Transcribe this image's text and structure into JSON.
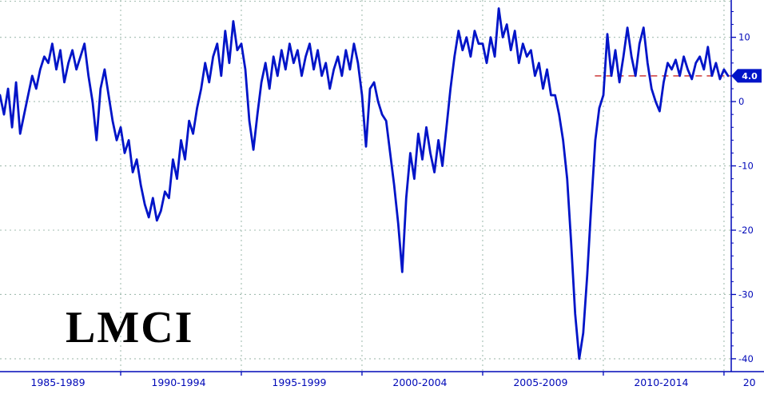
{
  "chart_data": {
    "type": "line",
    "title": "LMCI",
    "x_axis": {
      "xlim": [
        1985,
        2015.3
      ],
      "gridline_years": [
        1990,
        1995,
        2000,
        2005,
        2010,
        2015
      ],
      "tick_labels": [
        {
          "label": "1985-1989",
          "center_year": 1987.4
        },
        {
          "label": "1990-1994",
          "center_year": 1992.4
        },
        {
          "label": "1995-1999",
          "center_year": 1997.4
        },
        {
          "label": "2000-2004",
          "center_year": 2002.4
        },
        {
          "label": "2005-2009",
          "center_year": 2007.4
        },
        {
          "label": "2010-2014",
          "center_year": 2012.4
        },
        {
          "label": "20",
          "center_year": 2016.05
        }
      ]
    },
    "y_axis": {
      "side": "right",
      "ylim": [
        -42,
        15.8
      ],
      "tick_values": [
        10,
        0,
        -10,
        -20,
        -30,
        -40
      ],
      "minor_tick_step": 2
    },
    "series": [
      {
        "name": "LMCI",
        "x_start": 1985.0,
        "x_step_years": 0.1666667,
        "values": [
          1,
          -2,
          2,
          -4,
          3,
          -5,
          -2,
          1,
          4,
          2,
          5,
          7,
          6,
          9,
          5,
          8,
          3,
          6,
          8,
          5,
          7,
          9,
          4,
          0,
          -6,
          2,
          5,
          1,
          -3,
          -6,
          -4,
          -8,
          -6,
          -11,
          -9,
          -13,
          -16,
          -18,
          -15,
          -18.5,
          -17,
          -14,
          -15,
          -9,
          -12,
          -6,
          -9,
          -3,
          -5,
          -1,
          2,
          6,
          3,
          7,
          9,
          4,
          11,
          6,
          12.5,
          8,
          9,
          5,
          -3,
          -7.5,
          -2,
          3,
          6,
          2,
          7,
          4,
          8,
          5,
          9,
          6,
          8,
          4,
          7,
          9,
          5,
          8,
          4,
          6,
          2,
          5,
          7,
          4,
          8,
          5,
          9,
          6,
          1,
          -7,
          2,
          3,
          0,
          -2,
          -3,
          -8,
          -13,
          -19,
          -26.5,
          -15,
          -8,
          -12,
          -5,
          -9,
          -4,
          -8,
          -11,
          -6,
          -10,
          -4,
          2,
          7,
          11,
          8,
          10,
          7,
          11,
          9,
          9,
          6,
          10,
          7,
          14.5,
          10,
          12,
          8,
          11,
          6,
          9,
          7,
          8,
          4,
          6,
          2,
          5,
          1,
          1,
          -2,
          -6,
          -12,
          -22,
          -33,
          -40,
          -36,
          -27,
          -16,
          -6,
          -1,
          1,
          10.5,
          4,
          8,
          3,
          7,
          11.5,
          7,
          4,
          9,
          11.5,
          6,
          2,
          0,
          -1.5,
          3,
          6,
          5,
          6.5,
          4,
          7,
          5,
          3.5,
          6,
          7,
          5,
          8.5,
          4,
          6,
          3.5,
          5,
          4
        ]
      }
    ],
    "reference_line": {
      "value": 4.0,
      "start_year": 2009.65,
      "style": "dashed"
    },
    "last_value_badge": "4.0",
    "colors": {
      "line": "#0014c8",
      "axis": "#0008b8",
      "grid": "#a3bdb1",
      "reference": "#d04848",
      "badge_bg": "#0014c8",
      "badge_text": "#ffffff",
      "title": "#000000",
      "background": "#ffffff"
    }
  }
}
